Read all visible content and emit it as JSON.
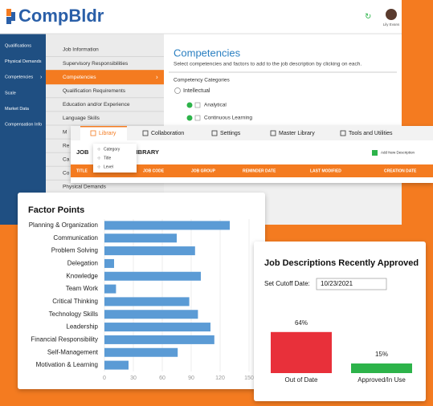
{
  "header": {
    "logo": "CompBldr",
    "user": "Lily Evans"
  },
  "sidebar": [
    "Qualifications",
    "Physical Demands",
    "Competencies",
    "Scale",
    "Market Data",
    "Compensation Info"
  ],
  "sections": [
    "Job Information",
    "Supervisory Responsibilities",
    "Competencies",
    "Qualification Requirements",
    "Education and/or Experience",
    "Language Skills",
    "M",
    "Re",
    "Ca",
    "Co",
    "Physical Demands"
  ],
  "panel": {
    "title": "Competencies",
    "subtitle": "Select competencies and factors to add to the job description by clicking on each.",
    "categories_label": "Competency Categories",
    "category": "Intellectual",
    "items": [
      "Analytical",
      "Continuous Learning"
    ]
  },
  "library": {
    "tabs": [
      "Library",
      "Collaboration",
      "Settings",
      "Master Library",
      "Tools and Utilities"
    ],
    "menu": [
      "Category",
      "Title",
      "Level"
    ],
    "heading_start": "JOB",
    "heading_end": "LIBRARY",
    "button": "Add New Description",
    "columns": [
      "TITLE",
      "JOB CODE",
      "JOB GROUP",
      "REMINDER DATE",
      "LAST MODIFIED",
      "CREATION DATE"
    ]
  },
  "factor_chart": {
    "type": "bar",
    "orientation": "horizontal",
    "title": "Factor Points",
    "categories": [
      "Planning & Organization",
      "Communication",
      "Problem Solving",
      "Delegation",
      "Knowledge",
      "Team Work",
      "Critical Thinking",
      "Technology Skills",
      "Leadership",
      "Financial Responsibility",
      "Self-Management",
      "Motivation & Learning"
    ],
    "values": [
      130,
      75,
      94,
      10,
      100,
      12,
      88,
      97,
      110,
      114,
      76,
      25
    ],
    "color": "#5b9bd5",
    "xlim": [
      0,
      150
    ],
    "xticks": [
      0,
      30,
      60,
      90,
      120,
      150
    ],
    "grid": true
  },
  "approved_chart": {
    "type": "bar",
    "title": "Job Descriptions Recently Approved",
    "cutoff_label": "Set Cutoff Date:",
    "cutoff_date": "10/23/2021",
    "categories": [
      "Out of Date",
      "Approved/In Use"
    ],
    "values": [
      64,
      15
    ],
    "value_labels": [
      "64%",
      "15%"
    ],
    "colors": [
      "#e8303a",
      "#2db34a"
    ],
    "ylim": [
      0,
      100
    ]
  }
}
